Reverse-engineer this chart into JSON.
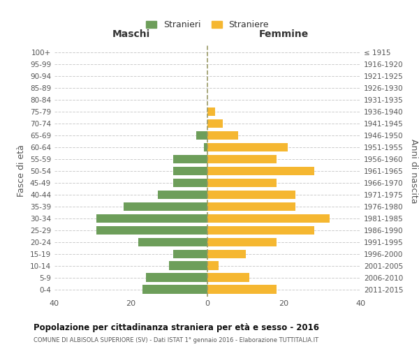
{
  "age_groups": [
    "0-4",
    "5-9",
    "10-14",
    "15-19",
    "20-24",
    "25-29",
    "30-34",
    "35-39",
    "40-44",
    "45-49",
    "50-54",
    "55-59",
    "60-64",
    "65-69",
    "70-74",
    "75-79",
    "80-84",
    "85-89",
    "90-94",
    "95-99",
    "100+"
  ],
  "birth_years": [
    "2011-2015",
    "2006-2010",
    "2001-2005",
    "1996-2000",
    "1991-1995",
    "1986-1990",
    "1981-1985",
    "1976-1980",
    "1971-1975",
    "1966-1970",
    "1961-1965",
    "1956-1960",
    "1951-1955",
    "1946-1950",
    "1941-1945",
    "1936-1940",
    "1931-1935",
    "1926-1930",
    "1921-1925",
    "1916-1920",
    "≤ 1915"
  ],
  "males": [
    17,
    16,
    10,
    9,
    18,
    29,
    29,
    22,
    13,
    9,
    9,
    9,
    1,
    3,
    0,
    0,
    0,
    0,
    0,
    0,
    0
  ],
  "females": [
    18,
    11,
    3,
    10,
    18,
    28,
    32,
    23,
    23,
    18,
    28,
    18,
    21,
    8,
    4,
    2,
    0,
    0,
    0,
    0,
    0
  ],
  "male_color": "#6d9e5a",
  "female_color": "#f5b731",
  "background_color": "#ffffff",
  "grid_color": "#cccccc",
  "title": "Popolazione per cittadinanza straniera per età e sesso - 2016",
  "subtitle": "COMUNE DI ALBISOLA SUPERIORE (SV) - Dati ISTAT 1° gennaio 2016 - Elaborazione TUTTITALIA.IT",
  "ylabel_left": "Fasce di età",
  "ylabel_right": "Anni di nascita",
  "xlabel_left": "Maschi",
  "xlabel_right": "Femmine",
  "legend_males": "Stranieri",
  "legend_females": "Straniere",
  "xlim": 40
}
